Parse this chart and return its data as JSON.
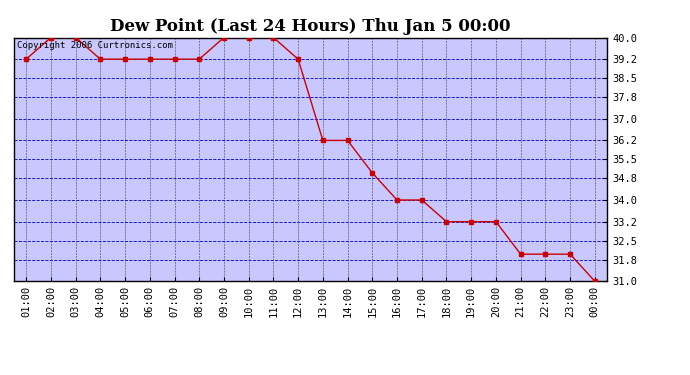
{
  "title": "Dew Point (Last 24 Hours) Thu Jan 5 00:00",
  "copyright": "Copyright 2006 Curtronics.com",
  "x_labels": [
    "01:00",
    "02:00",
    "03:00",
    "04:00",
    "05:00",
    "06:00",
    "07:00",
    "08:00",
    "09:00",
    "10:00",
    "11:00",
    "12:00",
    "13:00",
    "14:00",
    "15:00",
    "16:00",
    "17:00",
    "18:00",
    "19:00",
    "20:00",
    "21:00",
    "22:00",
    "23:00",
    "00:00"
  ],
  "x_values": [
    1,
    2,
    3,
    4,
    5,
    6,
    7,
    8,
    9,
    10,
    11,
    12,
    13,
    14,
    15,
    16,
    17,
    18,
    19,
    20,
    21,
    22,
    23,
    24
  ],
  "y_values": [
    39.2,
    40.0,
    40.0,
    39.2,
    39.2,
    39.2,
    39.2,
    39.2,
    40.0,
    40.0,
    40.0,
    39.2,
    36.2,
    36.2,
    35.0,
    34.0,
    34.0,
    33.2,
    33.2,
    33.2,
    32.0,
    32.0,
    32.0,
    31.0
  ],
  "ylim": [
    31.0,
    40.0
  ],
  "yticks": [
    31.0,
    31.8,
    32.5,
    33.2,
    34.0,
    34.8,
    35.5,
    36.2,
    37.0,
    37.8,
    38.5,
    39.2,
    40.0
  ],
  "line_color": "#cc0000",
  "marker": "s",
  "marker_size": 2.5,
  "bg_color": "#ffffff",
  "plot_bg_color": "#c8c8ff",
  "grid_color_h": "#0000bb",
  "grid_color_v": "#404040",
  "title_fontsize": 12,
  "tick_fontsize": 7.5,
  "copyright_fontsize": 6.5
}
